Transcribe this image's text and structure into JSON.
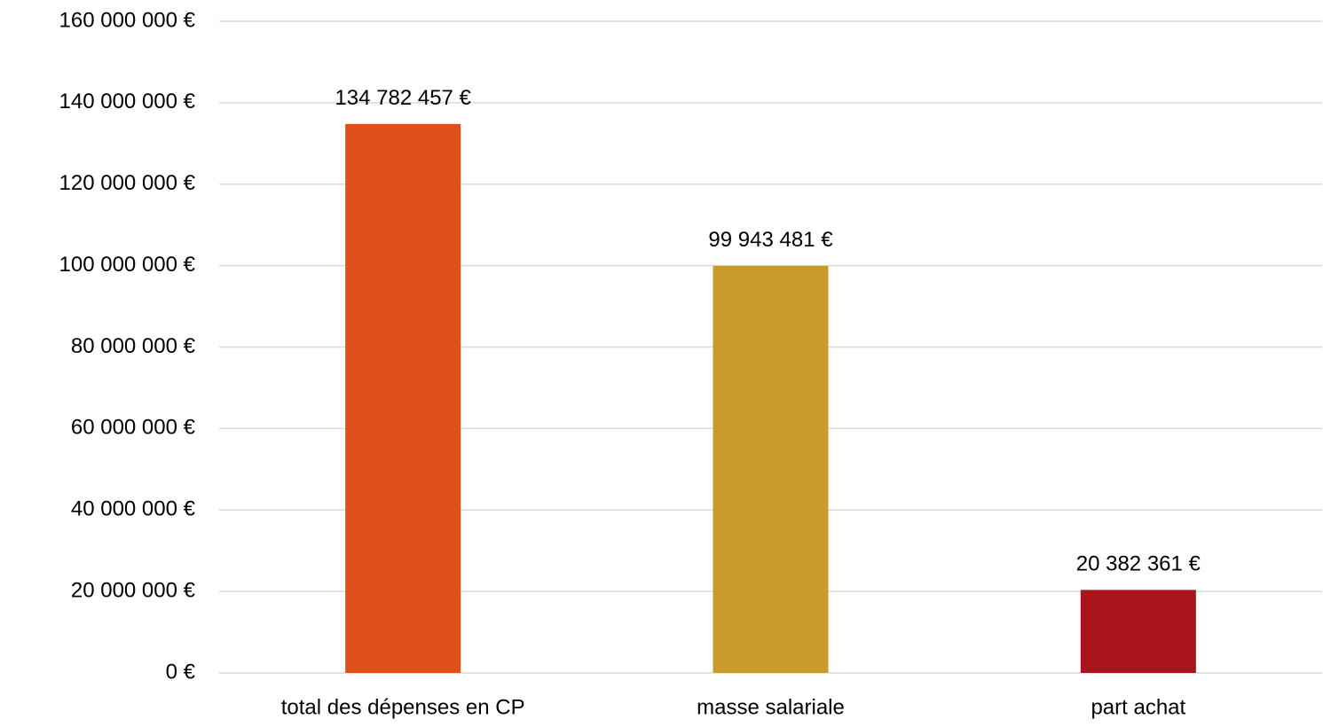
{
  "chart_data": {
    "type": "bar",
    "categories": [
      "total des dépenses en CP",
      "masse salariale",
      "part achat"
    ],
    "values": [
      134782457,
      99943481,
      20382361
    ],
    "value_labels": [
      "134 782 457 €",
      "99 943 481 €",
      "20 382 361 €"
    ],
    "colors": [
      "#e04e1a",
      "#c99b2a",
      "#a8161c"
    ],
    "ylim": [
      0,
      160000000
    ],
    "yticks": [
      {
        "value": 0,
        "label": "0 €"
      },
      {
        "value": 20000000,
        "label": "20 000 000 €"
      },
      {
        "value": 40000000,
        "label": "40 000 000 €"
      },
      {
        "value": 60000000,
        "label": "60 000 000 €"
      },
      {
        "value": 80000000,
        "label": "80 000 000 €"
      },
      {
        "value": 100000000,
        "label": "100 000 000 €"
      },
      {
        "value": 120000000,
        "label": "120 000 000 €"
      },
      {
        "value": 140000000,
        "label": "140 000 000 €"
      },
      {
        "value": 160000000,
        "label": "160 000 000 €"
      }
    ],
    "grid": true
  }
}
